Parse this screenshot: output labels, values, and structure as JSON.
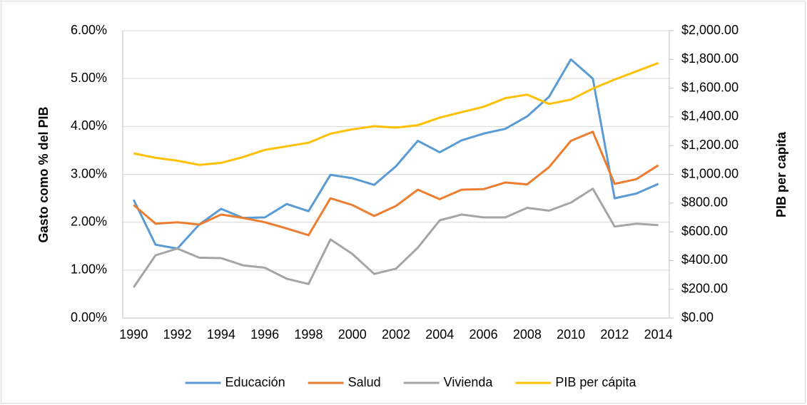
{
  "chart_data": {
    "type": "line",
    "categories": [
      "1990",
      null,
      "1992",
      null,
      "1994",
      null,
      "1996",
      null,
      "1998",
      null,
      "2000",
      null,
      "2002",
      null,
      "2004",
      null,
      "2006",
      null,
      "2008",
      null,
      "2010",
      null,
      "2012",
      null,
      "2014"
    ],
    "y_label": "Gasto como % del PIB",
    "y2_label": "PIB per capita",
    "ylim": [
      0,
      6
    ],
    "yticks": [
      {
        "value": 0,
        "label": "0.00%"
      },
      {
        "value": 1,
        "label": "1.00%"
      },
      {
        "value": 2,
        "label": "2.00%"
      },
      {
        "value": 3,
        "label": "3.00%"
      },
      {
        "value": 4,
        "label": "4.00%"
      },
      {
        "value": 5,
        "label": "5.00%"
      },
      {
        "value": 6,
        "label": "6.00%"
      }
    ],
    "y2lim": [
      0,
      2000
    ],
    "y2ticks": [
      {
        "value": 0,
        "label": "$0.00"
      },
      {
        "value": 200,
        "label": "$200.00"
      },
      {
        "value": 400,
        "label": "$400.00"
      },
      {
        "value": 600,
        "label": "$600.00"
      },
      {
        "value": 800,
        "label": "$800.00"
      },
      {
        "value": 1000,
        "label": "$1,000.00"
      },
      {
        "value": 1200,
        "label": "$1,200.00"
      },
      {
        "value": 1400,
        "label": "$1,400.00"
      },
      {
        "value": 1600,
        "label": "$1,600.00"
      },
      {
        "value": 1800,
        "label": "$1,800.00"
      },
      {
        "value": 2000,
        "label": "$2,000.00"
      }
    ],
    "grid": true,
    "legend": "bottom",
    "series": [
      {
        "name": "Educación",
        "color": "#5b9bd5",
        "values": [
          2.47,
          1.53,
          1.45,
          1.95,
          2.28,
          2.09,
          2.1,
          2.38,
          2.23,
          2.99,
          2.92,
          2.78,
          3.17,
          3.7,
          3.46,
          3.71,
          3.85,
          3.95,
          4.21,
          4.62,
          5.4,
          5.0,
          2.5,
          2.6,
          2.8
        ]
      },
      {
        "name": "Salud",
        "color": "#ed7d31",
        "values": [
          2.36,
          1.97,
          2.0,
          1.95,
          2.16,
          2.09,
          2.0,
          1.87,
          1.73,
          2.5,
          2.36,
          2.13,
          2.34,
          2.68,
          2.48,
          2.68,
          2.69,
          2.83,
          2.79,
          3.15,
          3.7,
          3.89,
          2.8,
          2.9,
          3.19
        ]
      },
      {
        "name": "Vivienda",
        "color": "#a5a5a5",
        "values": [
          0.64,
          1.31,
          1.45,
          1.26,
          1.25,
          1.1,
          1.05,
          0.82,
          0.71,
          1.64,
          1.34,
          0.92,
          1.03,
          1.47,
          2.04,
          2.16,
          2.1,
          2.1,
          2.3,
          2.24,
          2.41,
          2.7,
          1.91,
          1.97,
          1.94
        ]
      },
      {
        "name": "PIB per cápita",
        "color": "#ffc000",
        "axis": "y2",
        "values": [
          1146,
          1115,
          1095,
          1066,
          1080,
          1120,
          1170,
          1195,
          1220,
          1283,
          1313,
          1335,
          1325,
          1342,
          1395,
          1433,
          1470,
          1530,
          1555,
          1490,
          1520,
          1597,
          1660,
          1717,
          1775
        ]
      }
    ]
  }
}
